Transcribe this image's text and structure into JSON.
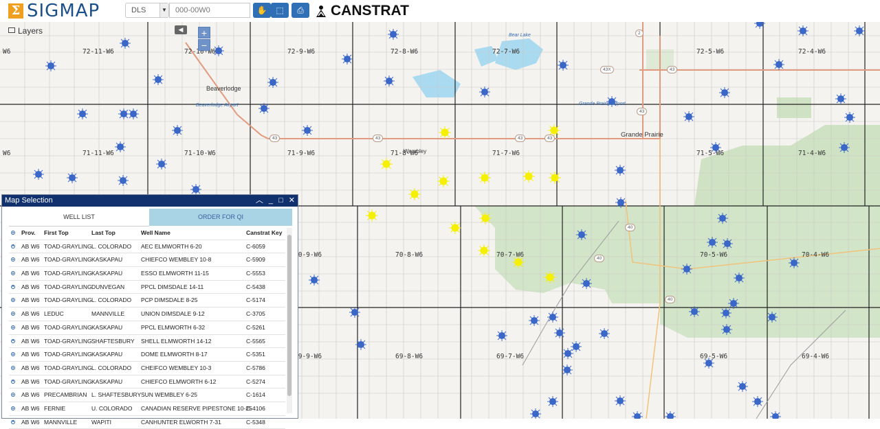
{
  "app": {
    "logo_text": "SIGMAP",
    "brand": "CANSTRAT"
  },
  "toolbar": {
    "grid_system": "DLS",
    "search_placeholder": "000-00W0"
  },
  "layers": {
    "label": "Layers"
  },
  "zoom": {
    "in": "+",
    "out": "−"
  },
  "map": {
    "townships": [
      "72-11-W6",
      "72-10-W6",
      "72-9-W6",
      "72-8-W6",
      "72-7-W6",
      "72-5-W6",
      "72-4-W6",
      "71-11-W6",
      "71-10-W6",
      "71-9-W6",
      "71-8-W6",
      "71-7-W6",
      "71-5-W6",
      "71-4-W6",
      "70-9-W6",
      "70-8-W6",
      "70-7-W6",
      "70-5-W6",
      "70-4-W6",
      "69-9-W6",
      "69-8-W6",
      "69-7-W6",
      "69-5-W6",
      "69-4-W6"
    ],
    "edge_labels": [
      "W6",
      "W6"
    ],
    "places": [
      "Beaverlodge",
      "Beaverlodge Airport",
      "Wembley",
      "Grande Prairie",
      "Grande Prairie Airport",
      "Bear Lake"
    ],
    "highways": [
      "43",
      "43",
      "43",
      "43",
      "43",
      "43",
      "43X",
      "40",
      "40",
      "40",
      "2"
    ],
    "well_color": "#3a67c8",
    "selected_well_color": "#f5f000"
  },
  "panel": {
    "title": "Map Selection",
    "tabs": [
      "WELL LIST",
      "ORDER FOR QI"
    ],
    "columns": [
      "Prov.",
      "First Top",
      "Last Top",
      "Well Name",
      "Canstrat Key"
    ],
    "rows": [
      [
        "AB W6",
        "TOAD-GRAYLING",
        "L. COLORADO",
        "AEC ELMWORTH 6-20",
        "C-6059"
      ],
      [
        "AB W6",
        "TOAD-GRAYLING",
        "KASKAPAU",
        "CHIEFCO WEMBLEY 10-8",
        "C-5909"
      ],
      [
        "AB W6",
        "TOAD-GRAYLING",
        "KASKAPAU",
        "ESSO ELMWORTH 11-15",
        "C-5553"
      ],
      [
        "AB W6",
        "TOAD-GRAYLING",
        "DUNVEGAN",
        "PPCL DIMSDALE 14-11",
        "C-5438"
      ],
      [
        "AB W6",
        "TOAD-GRAYLING",
        "L. COLORADO",
        "PCP DIMSDALE 8-25",
        "C-5174"
      ],
      [
        "AB W6",
        "LEDUC",
        "MANNVILLE",
        "UNION DIMSDALE 9-12",
        "C-3705"
      ],
      [
        "AB W6",
        "TOAD-GRAYLING",
        "KASKAPAU",
        "PPCL ELMWORTH 6-32",
        "C-5261"
      ],
      [
        "AB W6",
        "TOAD-GRAYLING",
        "SHAFTESBURY",
        "SHELL ELMWORTH 14-12",
        "C-5565"
      ],
      [
        "AB W6",
        "TOAD-GRAYLING",
        "KASKAPAU",
        "DOME ELMWORTH 8-17",
        "C-5351"
      ],
      [
        "AB W6",
        "TOAD-GRAYLING",
        "L. COLORADO",
        "CHEIFCO WEMBLEY 10-3",
        "C-5786"
      ],
      [
        "AB W6",
        "TOAD-GRAYLING",
        "KASKAPAU",
        "CHIEFCO ELMWORTH 6-12",
        "C-5274"
      ],
      [
        "AB W6",
        "PRECAMBRIAN",
        "L. SHAFTESBURY",
        "SUN WEMBLEY 6-25",
        "C-1614"
      ],
      [
        "AB W6",
        "FERNIE",
        "U. COLORADO",
        "CANADIAN RESERVE PIPESTONE 10-25",
        "C-4106"
      ],
      [
        "AB W6",
        "MANNVILLE",
        "WAPITI",
        "CANHUNTER ELWORTH 7-31",
        "C-5348"
      ]
    ]
  }
}
